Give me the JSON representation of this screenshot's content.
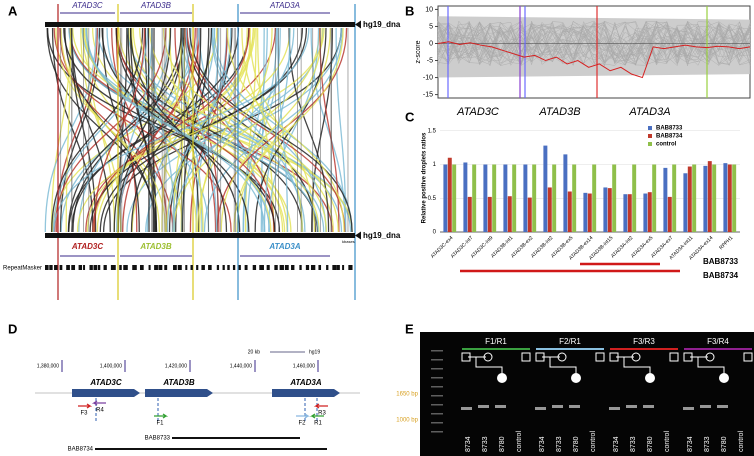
{
  "panel_labels": [
    "A",
    "B",
    "C",
    "D",
    "E"
  ],
  "panel_a": {
    "top_genes": [
      "ATAD3C",
      "ATAD3B",
      "ATAD3A"
    ],
    "top_track": "hg19_dna",
    "bottom_genes": [
      "ATAD3C",
      "ATAD3B",
      "ATAD3A"
    ],
    "bottom_track": "hg19_dna",
    "scale_unit": "kbases",
    "repeat_track": "RepeatMasker"
  },
  "chart_data": [
    {
      "type": "line",
      "ylabel": "z-score",
      "x": [
        0,
        1,
        2,
        3,
        4,
        5,
        6,
        7,
        8,
        9,
        10,
        11,
        12,
        13,
        14,
        15,
        16,
        17,
        18,
        19,
        20,
        21,
        22,
        23,
        24,
        25,
        26,
        27,
        28,
        29
      ],
      "xlim": [
        0,
        29
      ],
      "series": [
        {
          "name": "sample",
          "color": "#d62020",
          "values": [
            0,
            0.5,
            -0.3,
            0.2,
            -0.5,
            -1,
            -2,
            -3,
            -4,
            -3.5,
            -5,
            -4,
            -6,
            -5,
            -7,
            -6,
            -8,
            -7,
            -9,
            -10,
            -1,
            -1.5,
            -1,
            -0.5,
            -1,
            -1.2,
            -0.8,
            -1,
            -1.5,
            -1
          ]
        }
      ],
      "ylim": [
        -16,
        11
      ],
      "yticks": [
        10,
        5,
        0,
        -5,
        -10,
        -15
      ],
      "annotations": [
        "ATAD3C",
        "ATAD3B",
        "ATAD3A"
      ]
    },
    {
      "type": "bar",
      "ylabel": "Relative positive droplets ratios",
      "categories": [
        "ATAD3C-ex4",
        "ATAD3C-int7",
        "ATAD3C-int9",
        "ATAD3B-int1",
        "ATAD3B-ex2",
        "ATAD3B-int2",
        "ATAD3B-ex5",
        "ATAD3B-ex14",
        "ATAD3B-int15",
        "ATAD3A-int2",
        "ATAD3A-ex5",
        "ATAD3A-ex7",
        "ATAD3A-int11",
        "ATAD3A-ex14",
        "RPPH1"
      ],
      "series": [
        {
          "name": "BAB8733",
          "color": "#4a6fc1",
          "values": [
            1.0,
            1.03,
            1.0,
            1.0,
            1.0,
            1.28,
            1.15,
            0.58,
            0.66,
            0.56,
            0.57,
            0.95,
            0.87,
            0.98,
            1.02
          ]
        },
        {
          "name": "BAB8734",
          "color": "#c0392b",
          "values": [
            1.1,
            0.52,
            0.52,
            0.53,
            0.51,
            0.66,
            0.6,
            0.57,
            0.65,
            0.56,
            0.59,
            0.52,
            0.97,
            1.05,
            1.0
          ]
        },
        {
          "name": "control",
          "color": "#8fbf4a",
          "values": [
            1.0,
            1.0,
            1.0,
            1.0,
            1.0,
            1.0,
            1.0,
            1.0,
            1.0,
            1.0,
            1.0,
            1.0,
            1.0,
            1.0,
            1.0
          ]
        }
      ],
      "ylim": [
        0,
        1.6
      ],
      "yticks": [
        0,
        0.5,
        1,
        1.5
      ],
      "grid": true,
      "legend": "top-right",
      "annotations": [
        "BAB8733",
        "BAB8734"
      ]
    }
  ],
  "panel_d": {
    "scale": "20 kb",
    "assembly": "hg19",
    "coordinates": [
      "1,380,000",
      "1,400,000",
      "1,420,000",
      "1,440,000",
      "1,460,000"
    ],
    "genes": [
      "ATAD3C",
      "ATAD3B",
      "ATAD3A"
    ],
    "primers": [
      "F3",
      "R4",
      "F1",
      "F2",
      "R1",
      "R3"
    ],
    "deletions": [
      "BAB8733",
      "BAB8734"
    ]
  },
  "panel_e": {
    "primer_pairs": [
      "F1/R1",
      "F2/R1",
      "F3/R3",
      "F3/R4"
    ],
    "lanes": [
      "8734",
      "8733",
      "8780",
      "control"
    ],
    "ladder": [
      "1650 bp",
      "1000 bp"
    ]
  }
}
